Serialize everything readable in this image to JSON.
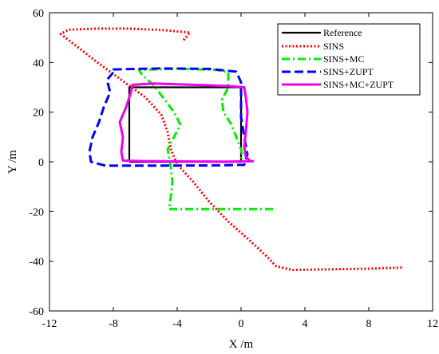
{
  "chart_data": {
    "type": "line",
    "title": "",
    "xlabel": "X /m",
    "ylabel": "Y /m",
    "xlim": [
      -12,
      12
    ],
    "ylim": [
      -60,
      60
    ],
    "xticks": [
      "-12",
      "-8",
      "-4",
      "0",
      "4",
      "8",
      "12"
    ],
    "yticks": [
      "-60",
      "-40",
      "-20",
      "0",
      "20",
      "40",
      "60"
    ],
    "grid": false,
    "legend_position": "top-right",
    "series": [
      {
        "name": "Reference",
        "color": "#000000",
        "style": "solid",
        "points": [
          [
            -7.0,
            0
          ],
          [
            -7.0,
            30
          ],
          [
            0.0,
            30
          ],
          [
            0.0,
            0
          ],
          [
            -7.0,
            0
          ]
        ]
      },
      {
        "name": "SINS",
        "color": "#ff0000",
        "style": "dotted",
        "points": [
          [
            -3.6,
            49
          ],
          [
            -3.2,
            52
          ],
          [
            -4.8,
            53
          ],
          [
            -7,
            53.6
          ],
          [
            -9,
            53.6
          ],
          [
            -10.8,
            53.2
          ],
          [
            -11.3,
            51.5
          ],
          [
            -10.2,
            46
          ],
          [
            -9,
            40
          ],
          [
            -7.5,
            33
          ],
          [
            -6.0,
            26
          ],
          [
            -5.0,
            19
          ],
          [
            -4.6,
            12
          ],
          [
            -4.4,
            5
          ],
          [
            -4.0,
            -1
          ],
          [
            -3.0,
            -8
          ],
          [
            -2.0,
            -16
          ],
          [
            -0.8,
            -24
          ],
          [
            0.6,
            -32
          ],
          [
            1.6,
            -38
          ],
          [
            2.2,
            -42
          ],
          [
            3.2,
            -43.5
          ],
          [
            6,
            -43.2
          ],
          [
            8,
            -43
          ],
          [
            10.2,
            -42.5
          ]
        ]
      },
      {
        "name": "SINS+MC",
        "color": "#00ee00",
        "style": "dashdot",
        "points": [
          [
            2.0,
            -19
          ],
          [
            -2,
            -19
          ],
          [
            -4.5,
            -19
          ],
          [
            -4.4,
            -14
          ],
          [
            -4.3,
            -8
          ],
          [
            -4.4,
            -2
          ],
          [
            -4.6,
            5
          ],
          [
            -4.2,
            10
          ],
          [
            -3.8,
            15
          ],
          [
            -4.2,
            20
          ],
          [
            -4.9,
            26
          ],
          [
            -5.5,
            31
          ],
          [
            -6.2,
            35
          ],
          [
            -6.4,
            37
          ],
          [
            -4,
            37.5
          ],
          [
            -1.5,
            37
          ],
          [
            -0.8,
            36
          ],
          [
            -0.8,
            30
          ],
          [
            -1.2,
            25
          ],
          [
            -1.1,
            20
          ],
          [
            -0.6,
            15
          ],
          [
            -0.3,
            10
          ],
          [
            0.0,
            5
          ],
          [
            0.1,
            2
          ],
          [
            -0.2,
            0
          ]
        ]
      },
      {
        "name": "SINS+ZUPT",
        "color": "#0000ff",
        "style": "dashed",
        "points": [
          [
            -8.0,
            36
          ],
          [
            -8.4,
            33
          ],
          [
            -8.2,
            28
          ],
          [
            -8.6,
            22
          ],
          [
            -8.9,
            16
          ],
          [
            -9.3,
            10
          ],
          [
            -9.5,
            4
          ],
          [
            -9.4,
            0
          ],
          [
            -8.5,
            -1.5
          ],
          [
            -5,
            -1.5
          ],
          [
            -1.5,
            -1.4
          ],
          [
            0.2,
            -1.2
          ],
          [
            0.4,
            3
          ],
          [
            0.2,
            10
          ],
          [
            0.0,
            18
          ],
          [
            0.0,
            26
          ],
          [
            0.0,
            32
          ],
          [
            -0.3,
            36.3
          ],
          [
            -2,
            37.4
          ],
          [
            -5,
            37.6
          ],
          [
            -8.0,
            37.2
          ],
          [
            -8.0,
            36
          ]
        ]
      },
      {
        "name": "SINS+MC+ZUPT",
        "color": "#ee00ee",
        "style": "solid",
        "points": [
          [
            0.8,
            0.3
          ],
          [
            -1,
            0.1
          ],
          [
            -4,
            0.2
          ],
          [
            -6,
            0.3
          ],
          [
            -7.4,
            0.5
          ],
          [
            -7.5,
            4
          ],
          [
            -7.4,
            10
          ],
          [
            -7.6,
            16
          ],
          [
            -7.2,
            22
          ],
          [
            -6.9,
            28
          ],
          [
            -6.8,
            31
          ],
          [
            -5.5,
            31.5
          ],
          [
            -3,
            31
          ],
          [
            -0.8,
            30.5
          ],
          [
            0.2,
            30
          ],
          [
            0.3,
            26
          ],
          [
            0.4,
            20
          ],
          [
            0.3,
            12
          ],
          [
            0.2,
            6
          ],
          [
            0.3,
            2
          ],
          [
            0.6,
            0.2
          ]
        ]
      }
    ]
  }
}
